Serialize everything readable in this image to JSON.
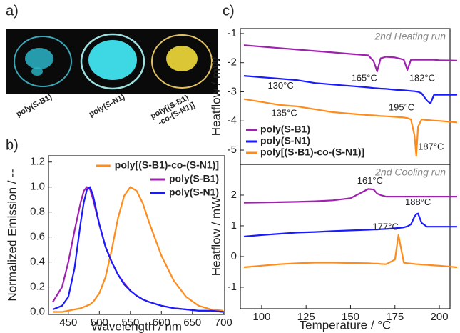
{
  "photos": {
    "label": "a)",
    "captions": [
      [
        "poly(S-B1)"
      ],
      [
        "poly(S-N1)"
      ],
      [
        "poly[(S-B1)",
        "-co-(S-N1)]"
      ]
    ]
  },
  "chart_data": [
    {
      "type": "line",
      "panel_label": "b)",
      "xlabel": "Wavelength / nm",
      "ylabel": "Normalized Emission / --",
      "x": [
        425,
        440,
        450,
        460,
        470,
        475,
        480,
        485,
        490,
        500,
        510,
        520,
        530,
        540,
        550,
        560,
        570,
        580,
        600,
        620,
        640,
        660,
        680,
        700
      ],
      "xlim": [
        418,
        702
      ],
      "xticks": [
        450,
        500,
        550,
        600,
        650,
        700
      ],
      "ylim": [
        -0.02,
        1.25
      ],
      "yticks": [
        {
          "value": 0,
          "label": "0.0"
        },
        0.2,
        0.4,
        0.6,
        0.8,
        {
          "value": 1,
          "label": "1.0"
        },
        1.2
      ],
      "legend": "upper right",
      "series": [
        {
          "name": "poly[(S-B1)-co-(S-N1)]",
          "color": "#ff8c1a",
          "values": [
            0,
            0,
            0.01,
            0.02,
            0.03,
            0.04,
            0.05,
            0.06,
            0.08,
            0.15,
            0.28,
            0.5,
            0.75,
            0.93,
            1.0,
            0.97,
            0.87,
            0.72,
            0.45,
            0.25,
            0.12,
            0.05,
            0.02,
            0.01
          ]
        },
        {
          "name": "poly(S-B1)",
          "color": "#a020b0",
          "values": [
            0.08,
            0.2,
            0.4,
            0.65,
            0.88,
            0.97,
            1.0,
            0.98,
            0.9,
            0.7,
            0.52,
            0.4,
            0.3,
            0.23,
            0.17,
            0.13,
            0.1,
            0.08,
            0.05,
            0.03,
            0.02,
            0.01,
            0.01,
            0
          ]
        },
        {
          "name": "poly(S-N1)",
          "color": "#1a1aff",
          "values": [
            0.02,
            0.05,
            0.12,
            0.35,
            0.72,
            0.88,
            0.98,
            1.0,
            0.93,
            0.7,
            0.52,
            0.4,
            0.3,
            0.22,
            0.17,
            0.13,
            0.1,
            0.08,
            0.05,
            0.03,
            0.02,
            0.01,
            0.01,
            0
          ]
        }
      ]
    },
    {
      "type": "line",
      "panel_label": "c)",
      "ylabel": "Heatflow / mW",
      "subtitle": "2nd Heating run",
      "annotations": [
        "165°C",
        "182°C",
        "130°C",
        "195°C",
        "135°C",
        "187°C"
      ],
      "x": [
        90,
        100,
        110,
        120,
        130,
        140,
        150,
        160,
        163,
        165,
        167,
        170,
        175,
        177,
        180,
        182,
        184,
        186,
        187,
        188,
        190,
        193,
        195,
        197,
        200,
        210
      ],
      "xlim": [
        88,
        206
      ],
      "ylim": [
        -5.49,
        -0.83
      ],
      "yticks": [
        -5,
        -4,
        -3,
        -2,
        -1
      ],
      "legend": "lower left",
      "series": [
        {
          "name": "poly(S-B1)",
          "color": "#a020b0",
          "values": [
            -1.4,
            -1.45,
            -1.5,
            -1.55,
            -1.6,
            -1.65,
            -1.7,
            -1.75,
            -1.95,
            -2.3,
            -1.85,
            -1.8,
            -1.82,
            -1.85,
            -1.9,
            -2.25,
            -1.9,
            -1.9,
            -1.9,
            -1.9,
            -1.9,
            -1.9,
            -1.9,
            -1.9,
            -1.92,
            -1.93
          ]
        },
        {
          "name": "poly(S-N1)",
          "color": "#1a1aff",
          "values": [
            -2.45,
            -2.5,
            -2.55,
            -2.6,
            -2.7,
            -2.75,
            -2.8,
            -2.85,
            -2.87,
            -2.88,
            -2.89,
            -2.9,
            -2.93,
            -2.94,
            -2.95,
            -2.96,
            -2.97,
            -2.98,
            -2.99,
            -3.0,
            -3.05,
            -3.3,
            -3.4,
            -3.1,
            -3.1,
            -3.1
          ]
        },
        {
          "name": "poly[(S-B1)-co-(S-N1)]",
          "color": "#ff8c1a",
          "values": [
            -3.25,
            -3.35,
            -3.45,
            -3.5,
            -3.6,
            -3.7,
            -3.75,
            -3.8,
            -3.81,
            -3.82,
            -3.83,
            -3.84,
            -3.86,
            -3.87,
            -3.88,
            -3.9,
            -3.95,
            -4.5,
            -5.2,
            -4.2,
            -3.95,
            -3.97,
            -3.98,
            -3.99,
            -4.0,
            -4.05
          ]
        }
      ]
    },
    {
      "type": "line",
      "xlabel": "Temperature / °C",
      "ylabel": "Heatflow / mW",
      "subtitle": "2nd Cooling run",
      "annotations": [
        "161°C",
        "188°C",
        "177°C"
      ],
      "x": [
        90,
        100,
        110,
        120,
        130,
        140,
        150,
        160,
        163,
        165,
        167,
        170,
        175,
        177,
        180,
        182,
        184,
        186,
        187,
        188,
        190,
        193,
        195,
        197,
        200,
        210
      ],
      "xlim": [
        88,
        206
      ],
      "xticks": [
        100,
        125,
        150,
        175,
        200
      ],
      "ylim": [
        -1.7,
        3.0
      ],
      "yticks": [
        -1,
        0,
        1,
        2
      ],
      "series": [
        {
          "color": "#a020b0",
          "values": [
            1.75,
            1.76,
            1.77,
            1.78,
            1.8,
            1.83,
            1.9,
            2.2,
            2.18,
            2.05,
            2.0,
            1.95,
            1.95,
            1.95,
            1.95,
            1.95,
            1.95,
            1.95,
            1.95,
            1.95,
            1.95,
            1.95,
            1.95,
            1.95,
            1.95,
            1.95
          ]
        },
        {
          "color": "#1a1aff",
          "values": [
            0.65,
            0.7,
            0.74,
            0.78,
            0.8,
            0.83,
            0.85,
            0.87,
            0.88,
            0.88,
            0.89,
            0.9,
            0.92,
            0.93,
            0.95,
            0.98,
            1.05,
            1.3,
            1.38,
            1.4,
            1.1,
            0.97,
            0.97,
            0.97,
            0.97,
            0.97
          ]
        },
        {
          "color": "#ff8c1a",
          "values": [
            -0.35,
            -0.3,
            -0.25,
            -0.22,
            -0.2,
            -0.2,
            -0.21,
            -0.22,
            -0.23,
            -0.23,
            -0.24,
            -0.25,
            -0.1,
            0.7,
            -0.2,
            -0.22,
            -0.23,
            -0.24,
            -0.25,
            -0.25,
            -0.26,
            -0.27,
            -0.28,
            -0.29,
            -0.3,
            -0.35
          ]
        }
      ]
    }
  ]
}
